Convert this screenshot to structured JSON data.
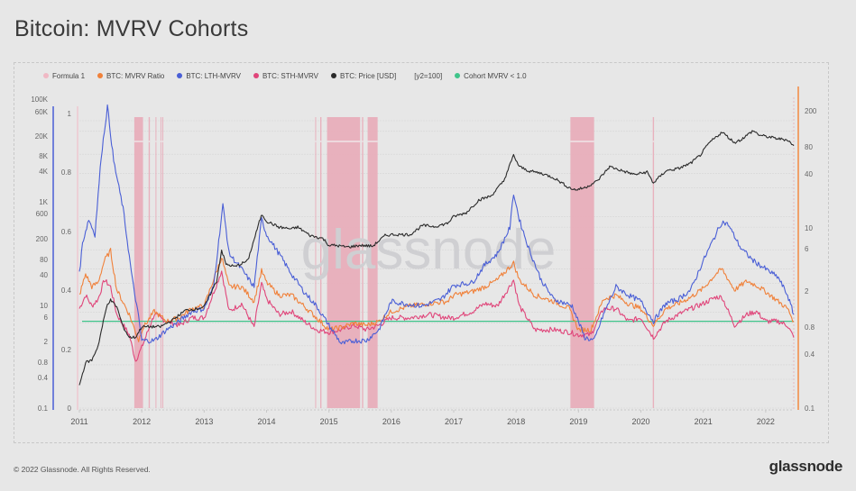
{
  "page": {
    "title": "Bitcoin: MVRV Cohorts",
    "footer_copyright": "© 2022 Glassnode. All Rights Reserved.",
    "footer_logo": "glassnode",
    "watermark": "glassnode"
  },
  "legend": [
    {
      "label": "Formula 1",
      "color": "#f0b8c4",
      "icon": "dot"
    },
    {
      "label": "BTC: MVRV Ratio",
      "color": "#f0813a",
      "icon": "dot"
    },
    {
      "label": "BTC: LTH-MVRV",
      "color": "#4a5fd6",
      "icon": "dot"
    },
    {
      "label": "BTC: STH-MVRV",
      "color": "#e0457a",
      "icon": "dot"
    },
    {
      "label": "BTC: Price [USD]",
      "color": "#2a2a2a",
      "icon": "dot"
    },
    {
      "label": "[y2=100]",
      "color": null,
      "icon": "none"
    },
    {
      "label": "Cohort MVRV < 1.0",
      "color": "#3fc48a",
      "icon": "dot"
    }
  ],
  "chart_data": {
    "type": "line",
    "title": "Bitcoin: MVRV Cohorts",
    "xlabel": "",
    "x_range": [
      2011.0,
      2022.45
    ],
    "x_ticks": [
      "2011",
      "2012",
      "2013",
      "2014",
      "2015",
      "2016",
      "2017",
      "2018",
      "2019",
      "2020",
      "2021",
      "2022"
    ],
    "axes": {
      "price_axis": {
        "side": "left-outer",
        "color": "#4a5fd6",
        "scale": "log",
        "range": [
          0.1,
          200000
        ],
        "ticks": [
          "100K",
          "60K",
          "20K",
          "8K",
          "4K",
          "1K",
          "600",
          "200",
          "80",
          "40",
          "10",
          "6",
          "2",
          "0.8",
          "0.4",
          "0.1"
        ]
      },
      "formula_axis": {
        "side": "left-inner",
        "color": "#f0b8c4",
        "scale": "linear",
        "range": [
          0,
          1
        ],
        "ticks": [
          "1",
          "0.8",
          "0.6",
          "0.4",
          "0.2",
          "0"
        ]
      },
      "mvrv_axis": {
        "side": "right",
        "color": "#f0a06a",
        "scale": "log",
        "range": [
          0.1,
          300
        ],
        "ticks": [
          "200",
          "80",
          "40",
          "10",
          "6",
          "2",
          "0.8",
          "0.4",
          "0.1"
        ]
      }
    },
    "threshold": {
      "name": "Cohort MVRV < 1.0",
      "value": 1.0,
      "color": "#3fc48a"
    },
    "formula1_bands": [
      [
        2011.88,
        2012.02
      ],
      [
        2012.11,
        2012.13
      ],
      [
        2012.22,
        2012.23
      ],
      [
        2012.3,
        2012.31
      ],
      [
        2012.33,
        2012.34
      ],
      [
        2014.78,
        2014.79
      ],
      [
        2014.86,
        2014.88
      ],
      [
        2014.97,
        2015.5
      ],
      [
        2015.53,
        2015.55
      ],
      [
        2015.62,
        2015.78
      ],
      [
        2018.87,
        2019.25
      ],
      [
        2020.19,
        2020.21
      ]
    ],
    "series": [
      {
        "name": "BTC: Price [USD]",
        "axis": "price_axis",
        "color": "#2a2a2a",
        "x": [
          2011.0,
          2011.1,
          2011.2,
          2011.3,
          2011.4,
          2011.45,
          2011.5,
          2011.6,
          2011.7,
          2011.8,
          2011.9,
          2012.0,
          2012.1,
          2012.3,
          2012.5,
          2012.7,
          2012.9,
          2013.0,
          2013.2,
          2013.28,
          2013.35,
          2013.5,
          2013.7,
          2013.9,
          2013.93,
          2014.0,
          2014.2,
          2014.4,
          2014.5,
          2014.7,
          2014.9,
          2015.0,
          2015.1,
          2015.3,
          2015.5,
          2015.7,
          2015.9,
          2016.0,
          2016.3,
          2016.5,
          2016.7,
          2016.9,
          2017.0,
          2017.2,
          2017.4,
          2017.6,
          2017.8,
          2017.96,
          2018.05,
          2018.2,
          2018.4,
          2018.6,
          2018.85,
          2018.95,
          2019.1,
          2019.3,
          2019.5,
          2019.7,
          2019.9,
          2020.1,
          2020.2,
          2020.4,
          2020.6,
          2020.8,
          2020.95,
          2021.1,
          2021.3,
          2021.5,
          2021.6,
          2021.8,
          2021.9,
          2022.0,
          2022.2,
          2022.35,
          2022.45
        ],
        "y": [
          0.3,
          0.9,
          1.0,
          2.0,
          8,
          15,
          18,
          13,
          5,
          3,
          3,
          5,
          5,
          5,
          7,
          11,
          12,
          13,
          45,
          200,
          100,
          90,
          120,
          900,
          1100,
          800,
          600,
          550,
          600,
          400,
          350,
          250,
          250,
          230,
          250,
          240,
          400,
          420,
          420,
          650,
          620,
          720,
          1000,
          1200,
          2200,
          2700,
          5500,
          19000,
          11000,
          9000,
          8000,
          6500,
          4000,
          3600,
          4000,
          5500,
          11000,
          9000,
          7500,
          8500,
          5000,
          9000,
          10000,
          13000,
          19000,
          35000,
          58000,
          35000,
          40000,
          62000,
          50000,
          47000,
          42000,
          40000,
          30000
        ]
      },
      {
        "name": "BTC: LTH-MVRV",
        "axis": "mvrv_axis",
        "color": "#4a5fd6",
        "x": [
          2011.0,
          2011.05,
          2011.15,
          2011.25,
          2011.35,
          2011.45,
          2011.55,
          2011.7,
          2011.85,
          2011.95,
          2012.0,
          2012.2,
          2012.4,
          2012.6,
          2012.8,
          2013.0,
          2013.15,
          2013.3,
          2013.4,
          2013.6,
          2013.8,
          2013.92,
          2014.0,
          2014.2,
          2014.4,
          2014.6,
          2014.8,
          2015.0,
          2015.2,
          2015.4,
          2015.6,
          2015.8,
          2016.0,
          2016.2,
          2016.5,
          2016.8,
          2017.0,
          2017.3,
          2017.5,
          2017.7,
          2017.9,
          2017.96,
          2018.05,
          2018.2,
          2018.4,
          2018.6,
          2018.8,
          2018.9,
          2019.1,
          2019.25,
          2019.4,
          2019.6,
          2019.8,
          2020.0,
          2020.2,
          2020.4,
          2020.6,
          2020.8,
          2021.0,
          2021.2,
          2021.3,
          2021.4,
          2021.6,
          2021.8,
          2022.0,
          2022.2,
          2022.35,
          2022.45
        ],
        "y": [
          3.5,
          8,
          15,
          10,
          80,
          300,
          70,
          20,
          3,
          1.1,
          0.6,
          0.6,
          0.8,
          1.0,
          1.3,
          1.4,
          2.5,
          22,
          6,
          4.0,
          2.5,
          15,
          10,
          6,
          3.5,
          2.2,
          1.5,
          0.9,
          0.55,
          0.6,
          0.6,
          0.8,
          1.7,
          1.6,
          1.5,
          1.8,
          2.6,
          2.8,
          4.5,
          6.0,
          12,
          30,
          15,
          7,
          3.0,
          1.8,
          1.6,
          1.5,
          0.65,
          0.6,
          1.2,
          2.5,
          2.0,
          1.7,
          1.0,
          1.6,
          1.8,
          2.3,
          5,
          10,
          14,
          13,
          7,
          5.0,
          4.0,
          3.2,
          2.0,
          1.2
        ]
      },
      {
        "name": "BTC: MVRV Ratio",
        "axis": "mvrv_axis",
        "color": "#f0813a",
        "x": [
          2011.0,
          2011.1,
          2011.2,
          2011.3,
          2011.4,
          2011.5,
          2011.6,
          2011.8,
          2011.95,
          2012.0,
          2012.2,
          2012.4,
          2012.6,
          2012.8,
          2013.0,
          2013.28,
          2013.4,
          2013.6,
          2013.8,
          2013.92,
          2014.0,
          2014.2,
          2014.4,
          2014.6,
          2014.8,
          2015.0,
          2015.2,
          2015.4,
          2015.6,
          2015.8,
          2016.0,
          2016.3,
          2016.6,
          2016.9,
          2017.0,
          2017.3,
          2017.5,
          2017.7,
          2017.96,
          2018.05,
          2018.3,
          2018.6,
          2018.85,
          2019.0,
          2019.2,
          2019.4,
          2019.6,
          2019.8,
          2020.0,
          2020.2,
          2020.4,
          2020.6,
          2020.8,
          2021.0,
          2021.2,
          2021.3,
          2021.5,
          2021.7,
          2021.85,
          2022.0,
          2022.2,
          2022.35,
          2022.45
        ],
        "y": [
          2.0,
          3.5,
          2.5,
          2.8,
          5.0,
          6.5,
          2.3,
          1.2,
          0.6,
          0.8,
          1.3,
          1.0,
          1.1,
          1.4,
          1.5,
          5.5,
          2.5,
          2.5,
          1.7,
          3.8,
          2.8,
          2.0,
          2.0,
          1.5,
          1.1,
          0.8,
          0.85,
          0.95,
          0.9,
          1.0,
          1.3,
          1.5,
          1.6,
          1.7,
          2.0,
          2.2,
          2.5,
          3.0,
          4.7,
          3.0,
          2.0,
          1.7,
          1.4,
          0.8,
          0.8,
          1.8,
          2.0,
          1.6,
          1.4,
          0.9,
          1.4,
          1.6,
          1.9,
          2.4,
          3.5,
          4.0,
          2.3,
          2.9,
          2.6,
          2.2,
          1.7,
          1.4,
          1.0
        ]
      },
      {
        "name": "BTC: STH-MVRV",
        "axis": "mvrv_axis",
        "color": "#e0457a",
        "x": [
          2011.0,
          2011.1,
          2011.2,
          2011.3,
          2011.4,
          2011.5,
          2011.6,
          2011.8,
          2011.9,
          2012.0,
          2012.2,
          2012.4,
          2012.6,
          2012.8,
          2013.0,
          2013.28,
          2013.4,
          2013.6,
          2013.8,
          2013.92,
          2014.0,
          2014.2,
          2014.4,
          2014.6,
          2014.8,
          2015.0,
          2015.2,
          2015.4,
          2015.6,
          2015.8,
          2016.0,
          2016.3,
          2016.6,
          2016.9,
          2017.0,
          2017.3,
          2017.5,
          2017.7,
          2017.96,
          2018.05,
          2018.3,
          2018.6,
          2018.85,
          2019.0,
          2019.2,
          2019.4,
          2019.6,
          2019.8,
          2020.0,
          2020.2,
          2020.4,
          2020.6,
          2020.8,
          2021.0,
          2021.2,
          2021.3,
          2021.5,
          2021.7,
          2021.85,
          2022.0,
          2022.2,
          2022.35,
          2022.45
        ],
        "y": [
          1.4,
          2.0,
          1.5,
          1.8,
          3.0,
          2.5,
          1.2,
          0.7,
          0.35,
          0.5,
          1.2,
          1.0,
          0.9,
          1.1,
          1.1,
          3.8,
          1.3,
          1.6,
          0.85,
          2.7,
          1.8,
          1.2,
          1.3,
          1.0,
          0.8,
          0.75,
          0.8,
          0.9,
          0.8,
          0.9,
          1.1,
          1.1,
          1.2,
          1.1,
          1.1,
          1.3,
          1.6,
          1.5,
          3.0,
          1.5,
          0.8,
          0.8,
          0.75,
          0.7,
          0.7,
          1.4,
          1.4,
          1.0,
          1.1,
          0.65,
          1.0,
          1.2,
          1.4,
          1.6,
          1.9,
          1.9,
          0.9,
          1.2,
          1.3,
          1.0,
          1.0,
          0.9,
          0.65
        ]
      }
    ]
  }
}
